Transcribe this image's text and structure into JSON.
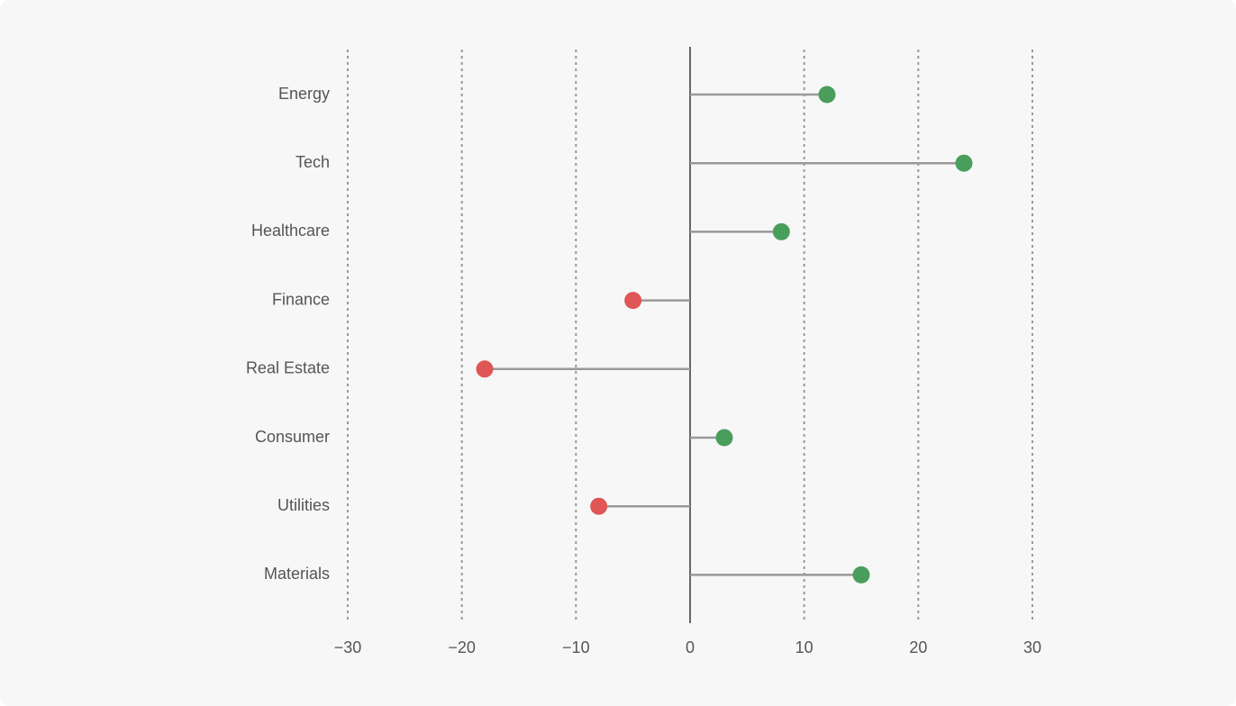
{
  "chart_data": {
    "type": "lollipop",
    "categories": [
      "Energy",
      "Tech",
      "Healthcare",
      "Finance",
      "Real Estate",
      "Consumer",
      "Utilities",
      "Materials"
    ],
    "values": [
      12,
      24,
      8,
      -5,
      -18,
      3,
      -8,
      15
    ],
    "positive_color": "#4a9e5c",
    "negative_color": "#e05555",
    "stem_color": "#999999",
    "xlim": [
      -30,
      30
    ],
    "xticks": [
      {
        "value": -30,
        "label": "−30"
      },
      {
        "value": -20,
        "label": "−20"
      },
      {
        "value": -10,
        "label": "−10"
      },
      0,
      10,
      20,
      30
    ],
    "grid": true
  }
}
